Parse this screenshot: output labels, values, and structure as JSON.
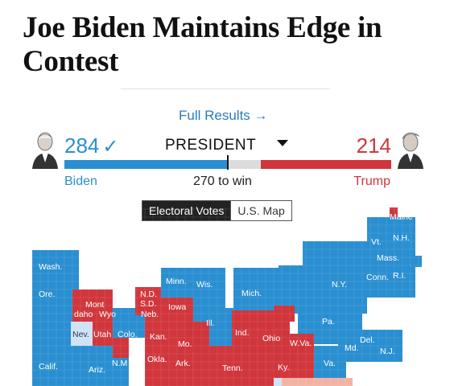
{
  "article": {
    "headline": "Joe Biden Maintains Edge in Contest"
  },
  "results": {
    "full_results_link": "Full Results →",
    "office": "PRESIDENT",
    "threshold_label": "270 to win",
    "biden": {
      "name": "Biden",
      "votes": "284",
      "winner_mark": "✓",
      "color": "#2a8fd1",
      "portrait": "biden-portrait"
    },
    "trump": {
      "name": "Trump",
      "votes": "214",
      "color": "#d0363b",
      "portrait": "trump-portrait"
    }
  },
  "view_tabs": [
    {
      "label": "Electoral Votes",
      "active": true
    },
    {
      "label": "U.S. Map",
      "active": false
    }
  ],
  "colors": {
    "dem": "#2a8fd1",
    "rep": "#d0363b",
    "leaning": "#f2b3a3",
    "undecided": "#cfe3f5"
  },
  "map_labels": {
    "maine": "Maine",
    "nh": "N.H.",
    "vt": "Vt.",
    "mass": "Mass.",
    "ri": "R.I.",
    "conn": "Conn.",
    "ny": "N.Y.",
    "pa": "Pa.",
    "nj": "N.J.",
    "del": "Del.",
    "md": "Md.",
    "va": "Va.",
    "wva": "W.Va.",
    "ohio": "Ohio",
    "ind": "Ind.",
    "ill": "Ill.",
    "mich": "Mich.",
    "wis": "Wis.",
    "minn": "Minn.",
    "iowa": "Iowa",
    "mo": "Mo.",
    "ark": "Ark.",
    "tenn": "Tenn.",
    "ky": "Ky.",
    "okla": "Okla.",
    "kan": "Kan.",
    "neb": "Neb.",
    "sd": "S.D.",
    "nd": "N.D.",
    "wyo": "Wyo",
    "mont": "Mont",
    "idaho": "daho",
    "utah": "Utah",
    "colo": "Colo.",
    "nm": "N.M",
    "ariz": "Ariz.",
    "nev": "Nev.",
    "calif": "Calif.",
    "ore": "Ore.",
    "wash": "Wash."
  }
}
